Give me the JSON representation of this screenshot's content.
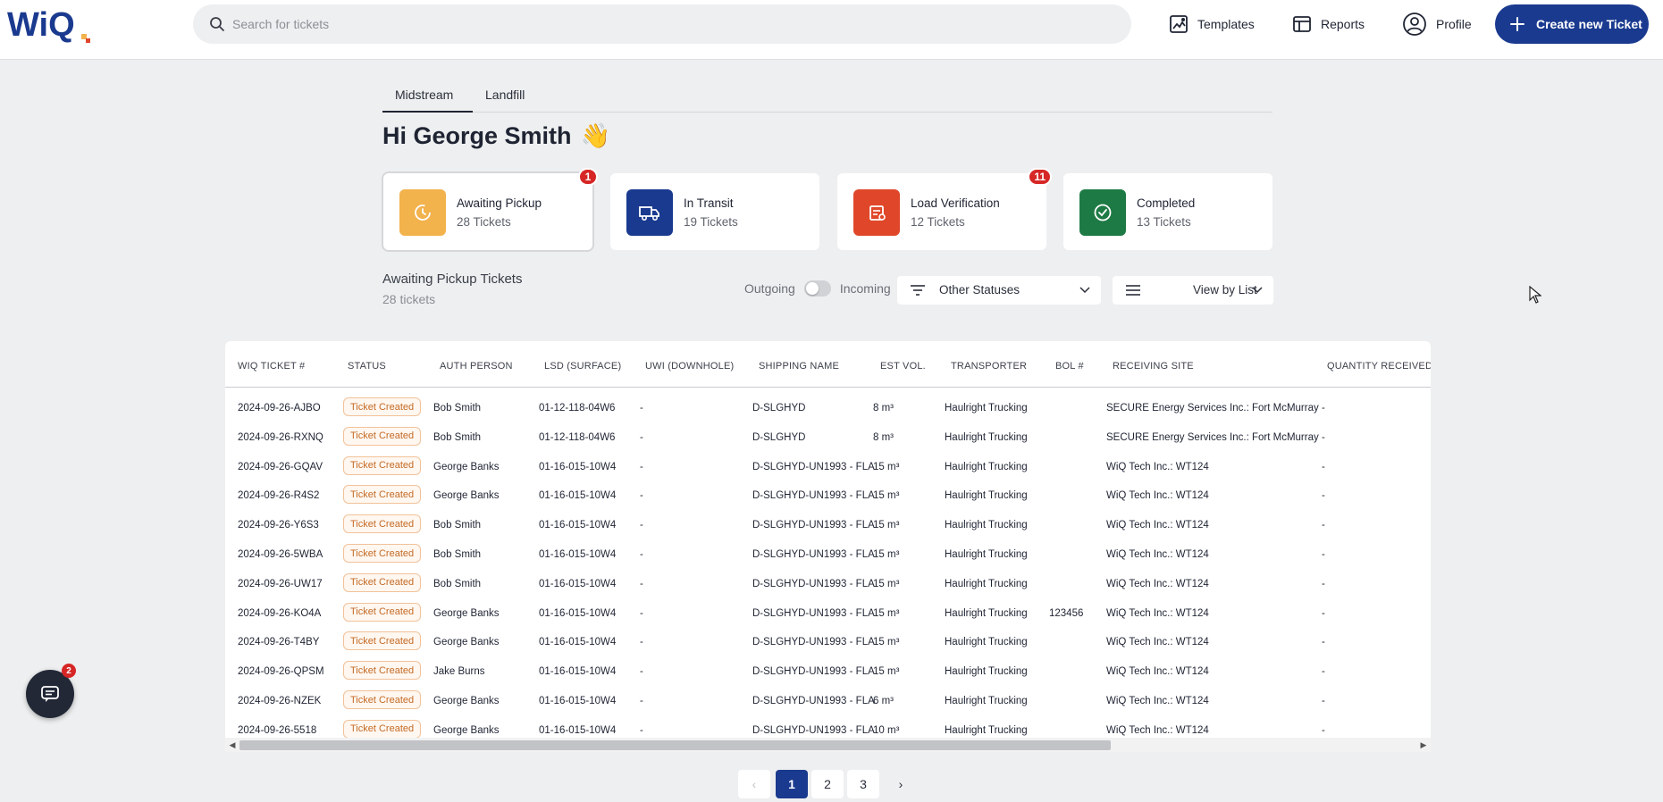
{
  "header": {
    "logo_text": "WiQ",
    "search_placeholder": "Search for tickets",
    "nav": [
      {
        "label": "Templates",
        "icon": "templates-icon"
      },
      {
        "label": "Reports",
        "icon": "reports-icon"
      },
      {
        "label": "Profile",
        "icon": "profile-icon"
      }
    ],
    "create_label": "Create new Ticket"
  },
  "tabs": [
    {
      "label": "Midstream",
      "active": true
    },
    {
      "label": "Landfill",
      "active": false
    }
  ],
  "greeting": {
    "text": "Hi George Smith",
    "emoji": "👋"
  },
  "cards": [
    {
      "title": "Awaiting Pickup",
      "sub": "28 Tickets",
      "badge": "1",
      "color": "#f2b24c"
    },
    {
      "title": "In Transit",
      "sub": "19 Tickets",
      "badge": "",
      "color": "#1a3a8f"
    },
    {
      "title": "Load Verification",
      "sub": "12 Tickets",
      "badge": "11",
      "color": "#e0472a"
    },
    {
      "title": "Completed",
      "sub": "13 Tickets",
      "badge": "",
      "color": "#1e7a44"
    }
  ],
  "list": {
    "title": "Awaiting Pickup Tickets",
    "count": "28 tickets",
    "toggle_left": "Outgoing",
    "toggle_right": "Incoming",
    "status_filter": "Other Statuses",
    "view_mode": "View by List"
  },
  "table": {
    "headers": [
      "WIQ TICKET #",
      "STATUS",
      "AUTH PERSON",
      "LSD (SURFACE)",
      "UWI (DOWNHOLE)",
      "SHIPPING NAME",
      "EST VOL.",
      "TRANSPORTER",
      "BOL #",
      "RECEIVING SITE",
      "QUANTITY RECEIVED"
    ],
    "rows": [
      {
        "ticket": "2024-09-26-AJBO",
        "status": "Ticket Created",
        "auth": "Bob Smith",
        "lsd": "01-12-118-04W6",
        "uwi": "-",
        "shipping": "D-SLGHYD",
        "vol": "8 m³",
        "transporter": "Haulright Trucking",
        "bol": "",
        "site": "SECURE Energy Services Inc.: Fort McMurray",
        "qty": "-"
      },
      {
        "ticket": "2024-09-26-RXNQ",
        "status": "Ticket Created",
        "auth": "Bob Smith",
        "lsd": "01-12-118-04W6",
        "uwi": "-",
        "shipping": "D-SLGHYD",
        "vol": "8 m³",
        "transporter": "Haulright Trucking",
        "bol": "",
        "site": "SECURE Energy Services Inc.: Fort McMurray",
        "qty": "-"
      },
      {
        "ticket": "2024-09-26-GQAV",
        "status": "Ticket Created",
        "auth": "George Banks",
        "lsd": "01-16-015-10W4",
        "uwi": "-",
        "shipping": "D-SLGHYD-UN1993 - FLA",
        "vol": "15 m³",
        "transporter": "Haulright Trucking",
        "bol": "",
        "site": "WiQ Tech Inc.: WT124",
        "qty": "-"
      },
      {
        "ticket": "2024-09-26-R4S2",
        "status": "Ticket Created",
        "auth": "George Banks",
        "lsd": "01-16-015-10W4",
        "uwi": "-",
        "shipping": "D-SLGHYD-UN1993 - FLA",
        "vol": "15 m³",
        "transporter": "Haulright Trucking",
        "bol": "",
        "site": "WiQ Tech Inc.: WT124",
        "qty": "-"
      },
      {
        "ticket": "2024-09-26-Y6S3",
        "status": "Ticket Created",
        "auth": "Bob Smith",
        "lsd": "01-16-015-10W4",
        "uwi": "-",
        "shipping": "D-SLGHYD-UN1993 - FLA",
        "vol": "15 m³",
        "transporter": "Haulright Trucking",
        "bol": "",
        "site": "WiQ Tech Inc.: WT124",
        "qty": "-"
      },
      {
        "ticket": "2024-09-26-5WBA",
        "status": "Ticket Created",
        "auth": "Bob Smith",
        "lsd": "01-16-015-10W4",
        "uwi": "-",
        "shipping": "D-SLGHYD-UN1993 - FLA",
        "vol": "15 m³",
        "transporter": "Haulright Trucking",
        "bol": "",
        "site": "WiQ Tech Inc.: WT124",
        "qty": "-"
      },
      {
        "ticket": "2024-09-26-UW17",
        "status": "Ticket Created",
        "auth": "Bob Smith",
        "lsd": "01-16-015-10W4",
        "uwi": "-",
        "shipping": "D-SLGHYD-UN1993 - FLA",
        "vol": "15 m³",
        "transporter": "Haulright Trucking",
        "bol": "",
        "site": "WiQ Tech Inc.: WT124",
        "qty": "-"
      },
      {
        "ticket": "2024-09-26-KO4A",
        "status": "Ticket Created",
        "auth": "George Banks",
        "lsd": "01-16-015-10W4",
        "uwi": "-",
        "shipping": "D-SLGHYD-UN1993 - FLA",
        "vol": "15 m³",
        "transporter": "Haulright Trucking",
        "bol": "123456",
        "site": "WiQ Tech Inc.: WT124",
        "qty": "-"
      },
      {
        "ticket": "2024-09-26-T4BY",
        "status": "Ticket Created",
        "auth": "George Banks",
        "lsd": "01-16-015-10W4",
        "uwi": "-",
        "shipping": "D-SLGHYD-UN1993 - FLA",
        "vol": "15 m³",
        "transporter": "Haulright Trucking",
        "bol": "",
        "site": "WiQ Tech Inc.: WT124",
        "qty": "-"
      },
      {
        "ticket": "2024-09-26-QPSM",
        "status": "Ticket Created",
        "auth": "Jake Burns",
        "lsd": "01-16-015-10W4",
        "uwi": "-",
        "shipping": "D-SLGHYD-UN1993 - FLA",
        "vol": "15 m³",
        "transporter": "Haulright Trucking",
        "bol": "",
        "site": "WiQ Tech Inc.: WT124",
        "qty": "-"
      },
      {
        "ticket": "2024-09-26-NZEK",
        "status": "Ticket Created",
        "auth": "George Banks",
        "lsd": "01-16-015-10W4",
        "uwi": "-",
        "shipping": "D-SLGHYD-UN1993 - FLA",
        "vol": "6 m³",
        "transporter": "Haulright Trucking",
        "bol": "",
        "site": "WiQ Tech Inc.: WT124",
        "qty": "-"
      },
      {
        "ticket": "2024-09-26-5518",
        "status": "Ticket Created",
        "auth": "George Banks",
        "lsd": "01-16-015-10W4",
        "uwi": "-",
        "shipping": "D-SLGHYD-UN1993 - FLA",
        "vol": "10 m³",
        "transporter": "Haulright Trucking",
        "bol": "",
        "site": "WiQ Tech Inc.: WT124",
        "qty": "-"
      }
    ]
  },
  "pagination": {
    "prev": "‹",
    "pages": [
      "1",
      "2",
      "3"
    ],
    "current": "1",
    "next": "›"
  },
  "chat": {
    "badge": "2"
  }
}
